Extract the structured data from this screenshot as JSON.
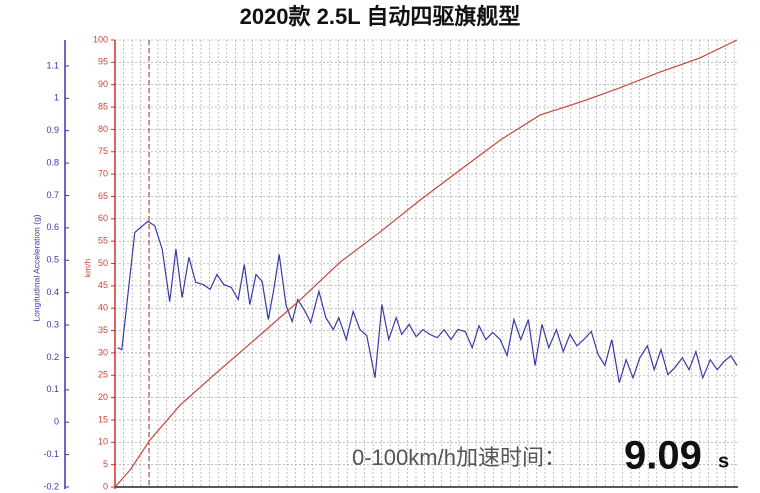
{
  "chart_data": {
    "type": "line",
    "title": "2020款 2.5L 自动四驱旗舰型",
    "ylabel": "Longitudinal Acceleration (g)",
    "y2label": "km/h",
    "annotation": {
      "label": "0-100km/h加速时间：",
      "value": "9.09",
      "unit": "s"
    },
    "xlim": [
      0,
      9.09
    ],
    "ylim": [
      -0.2,
      1.18
    ],
    "yticks": [
      -0.2,
      -0.1,
      0,
      0.1,
      0.2,
      0.3,
      0.4,
      0.5,
      0.6,
      0.7,
      0.8,
      0.9,
      1,
      1.1
    ],
    "y2lim": [
      0,
      100
    ],
    "y2ticks": [
      0,
      5,
      10,
      15,
      20,
      25,
      30,
      35,
      40,
      45,
      50,
      55,
      60,
      65,
      70,
      75,
      80,
      85,
      90,
      95,
      100
    ],
    "grid": true,
    "series": [
      {
        "name": "Longitudinal Acceleration (g)",
        "color": "#3a3aa8",
        "axis": "y",
        "x": [
          0.04,
          0.1,
          0.29,
          0.48,
          0.58,
          0.69,
          0.8,
          0.89,
          0.98,
          1.08,
          1.18,
          1.29,
          1.39,
          1.49,
          1.59,
          1.7,
          1.8,
          1.89,
          1.97,
          2.06,
          2.15,
          2.24,
          2.32,
          2.4,
          2.5,
          2.59,
          2.67,
          2.78,
          2.86,
          2.98,
          3.08,
          3.19,
          3.27,
          3.38,
          3.48,
          3.58,
          3.68,
          3.8,
          3.9,
          4.0,
          4.11,
          4.19,
          4.3,
          4.4,
          4.5,
          4.6,
          4.71,
          4.81,
          4.91,
          5.01,
          5.12,
          5.22,
          5.32,
          5.42,
          5.52,
          5.63,
          5.73,
          5.83,
          5.93,
          6.04,
          6.14,
          6.24,
          6.34,
          6.45,
          6.55,
          6.65,
          6.75,
          6.85,
          6.96,
          7.06,
          7.16,
          7.26,
          7.37,
          7.47,
          7.57,
          7.67,
          7.78,
          7.88,
          7.98,
          8.08,
          8.18,
          8.29,
          8.39,
          8.49,
          8.59,
          8.7,
          8.8,
          8.9,
          9.0,
          9.09
        ],
        "values": [
          0.23,
          0.224,
          0.586,
          0.62,
          0.607,
          0.534,
          0.372,
          0.534,
          0.385,
          0.509,
          0.432,
          0.425,
          0.41,
          0.456,
          0.425,
          0.416,
          0.379,
          0.487,
          0.363,
          0.456,
          0.435,
          0.317,
          0.41,
          0.518,
          0.36,
          0.311,
          0.379,
          0.342,
          0.308,
          0.404,
          0.323,
          0.286,
          0.323,
          0.255,
          0.342,
          0.286,
          0.267,
          0.137,
          0.363,
          0.255,
          0.323,
          0.271,
          0.302,
          0.264,
          0.286,
          0.271,
          0.261,
          0.286,
          0.255,
          0.286,
          0.28,
          0.23,
          0.298,
          0.255,
          0.277,
          0.255,
          0.206,
          0.317,
          0.255,
          0.317,
          0.175,
          0.302,
          0.23,
          0.286,
          0.218,
          0.271,
          0.236,
          0.255,
          0.28,
          0.209,
          0.175,
          0.255,
          0.122,
          0.193,
          0.137,
          0.199,
          0.236,
          0.162,
          0.224,
          0.147,
          0.168,
          0.199,
          0.162,
          0.218,
          0.137,
          0.193,
          0.162,
          0.187,
          0.205,
          0.175
        ]
      },
      {
        "name": "km/h",
        "color": "#c8463c",
        "axis": "y2",
        "x": [
          0,
          0.22,
          0.51,
          0.95,
          1.53,
          2.12,
          2.7,
          3.29,
          3.87,
          4.46,
          5.04,
          5.63,
          6.21,
          6.8,
          7.38,
          7.96,
          8.55,
          9.09
        ],
        "values": [
          0,
          3.8,
          10.5,
          18.3,
          26.2,
          34,
          41.8,
          50.3,
          57,
          64.2,
          70.9,
          77.6,
          83.2,
          86.1,
          89.3,
          92.8,
          96,
          100
        ]
      }
    ]
  }
}
